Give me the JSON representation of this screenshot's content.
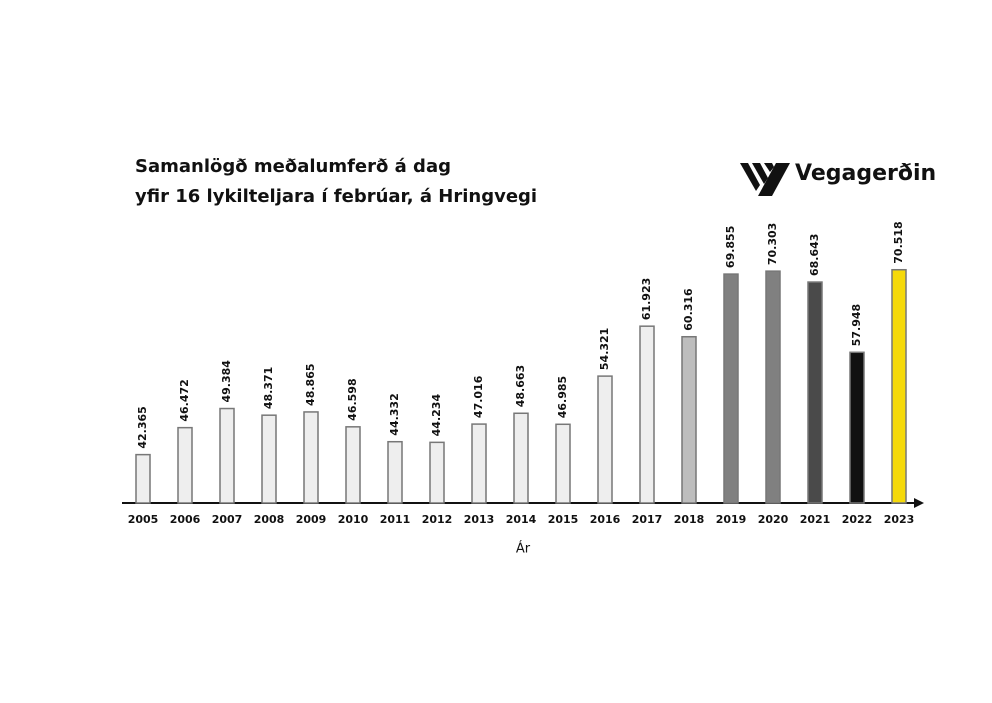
{
  "chart_data": {
    "type": "bar",
    "title": "Samanlögð meðalumferð á dag",
    "subtitle": "yfir 16 lykilteljara í febrúar, á Hringvegi",
    "logo": "Vegagerðin",
    "x_label": "Ár",
    "categories": [
      "2005",
      "2006",
      "2007",
      "2008",
      "2009",
      "2010",
      "2011",
      "2012",
      "2013",
      "2014",
      "2015",
      "2016",
      "2017",
      "2018",
      "2019",
      "2020",
      "2021",
      "2022",
      "2023"
    ],
    "values": [
      42365,
      46472,
      49384,
      48371,
      48865,
      46598,
      44332,
      44234,
      47016,
      48663,
      46985,
      54321,
      61923,
      60316,
      69855,
      70303,
      68643,
      57948,
      70518
    ],
    "value_labels": [
      "42.365",
      "46.472",
      "49.384",
      "48.371",
      "48.865",
      "46.598",
      "44.332",
      "44.234",
      "47.016",
      "48.663",
      "46.985",
      "54.321",
      "61.923",
      "60.316",
      "69.855",
      "70.303",
      "68.643",
      "57.948",
      "70.518"
    ],
    "colors": [
      "#eeeeee",
      "#eeeeee",
      "#eeeeee",
      "#eeeeee",
      "#eeeeee",
      "#eeeeee",
      "#eeeeee",
      "#eeeeee",
      "#eeeeee",
      "#eeeeee",
      "#eeeeee",
      "#eeeeee",
      "#eeeeee",
      "#bdbdbd",
      "#808080",
      "#808080",
      "#4a4a4a",
      "#111111",
      "#f5d90a"
    ],
    "ylim": [
      35000,
      72000
    ]
  }
}
